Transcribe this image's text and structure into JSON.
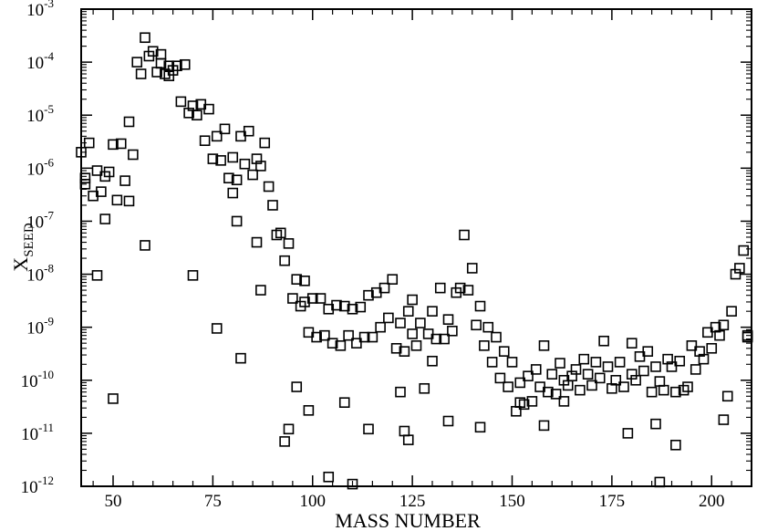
{
  "chart_data": {
    "type": "scatter",
    "title": "",
    "xlabel": "MASS NUMBER",
    "ylabel": "X",
    "ylabel_subscript": "SEED",
    "xlim": [
      42,
      210
    ],
    "ylim": [
      1e-12,
      0.001
    ],
    "yscale": "log",
    "grid": false,
    "xticks": [
      50,
      75,
      100,
      125,
      150,
      175,
      200
    ],
    "yticks": [
      {
        "base": "10",
        "exp": "-12",
        "value": 1e-12
      },
      {
        "base": "10",
        "exp": "-11",
        "value": 1e-11
      },
      {
        "base": "10",
        "exp": "-10",
        "value": 1e-10
      },
      {
        "base": "10",
        "exp": "-9",
        "value": 1e-09
      },
      {
        "base": "10",
        "exp": "-8",
        "value": 1e-08
      },
      {
        "base": "10",
        "exp": "-7",
        "value": 1e-07
      },
      {
        "base": "10",
        "exp": "-6",
        "value": 1e-06
      },
      {
        "base": "10",
        "exp": "-5",
        "value": 1e-05
      },
      {
        "base": "10",
        "exp": "-4",
        "value": 0.0001
      },
      {
        "base": "10",
        "exp": "-3",
        "value": 0.001
      }
    ],
    "marker": "open-square",
    "points": [
      [
        42,
        2e-06
      ],
      [
        43,
        6.5e-07
      ],
      [
        43,
        5e-07
      ],
      [
        44,
        3e-06
      ],
      [
        45,
        3e-07
      ],
      [
        46,
        9.5e-09
      ],
      [
        46,
        9e-07
      ],
      [
        47,
        3.6e-07
      ],
      [
        48,
        1.1e-07
      ],
      [
        48,
        7e-07
      ],
      [
        49,
        8.5e-07
      ],
      [
        50,
        4.5e-11
      ],
      [
        50,
        2.8e-06
      ],
      [
        51,
        2.5e-07
      ],
      [
        52,
        2.9e-06
      ],
      [
        53,
        5.8e-07
      ],
      [
        54,
        7.5e-06
      ],
      [
        54,
        2.4e-07
      ],
      [
        55,
        1.8e-06
      ],
      [
        56,
        0.0001
      ],
      [
        57,
        6e-05
      ],
      [
        58,
        0.00029
      ],
      [
        58,
        3.5e-08
      ],
      [
        59,
        0.00013
      ],
      [
        60,
        0.00016
      ],
      [
        61,
        6.5e-05
      ],
      [
        62,
        0.00014
      ],
      [
        62,
        9.5e-05
      ],
      [
        63,
        6e-05
      ],
      [
        64,
        8.5e-05
      ],
      [
        64,
        5.5e-05
      ],
      [
        65,
        7e-05
      ],
      [
        66,
        8.5e-05
      ],
      [
        68,
        9e-05
      ],
      [
        67,
        1.8e-05
      ],
      [
        69,
        1.1e-05
      ],
      [
        70,
        9.5e-09
      ],
      [
        70,
        1.5e-05
      ],
      [
        71,
        1e-05
      ],
      [
        72,
        1.6e-05
      ],
      [
        73,
        3.3e-06
      ],
      [
        74,
        1.3e-05
      ],
      [
        75,
        1.5e-06
      ],
      [
        76,
        9.5e-10
      ],
      [
        76,
        4e-06
      ],
      [
        77,
        1.4e-06
      ],
      [
        78,
        5.5e-06
      ],
      [
        79,
        6.5e-07
      ],
      [
        80,
        3.4e-07
      ],
      [
        80,
        1.6e-06
      ],
      [
        81,
        1e-07
      ],
      [
        81,
        6e-07
      ],
      [
        82,
        2.6e-10
      ],
      [
        82,
        4e-06
      ],
      [
        83,
        1.2e-06
      ],
      [
        84,
        5e-06
      ],
      [
        85,
        7.5e-07
      ],
      [
        86,
        4e-08
      ],
      [
        86,
        1.5e-06
      ],
      [
        87,
        1.1e-06
      ],
      [
        87,
        5e-09
      ],
      [
        88,
        3e-06
      ],
      [
        89,
        4.5e-07
      ],
      [
        90,
        2e-07
      ],
      [
        91,
        5.5e-08
      ],
      [
        92,
        6e-08
      ],
      [
        93,
        1.8e-08
      ],
      [
        93,
        7e-12
      ],
      [
        94,
        1.2e-11
      ],
      [
        94,
        3.8e-08
      ],
      [
        95,
        3.5e-09
      ],
      [
        96,
        7.5e-11
      ],
      [
        96,
        8e-09
      ],
      [
        97,
        2.5e-09
      ],
      [
        98,
        3e-09
      ],
      [
        98,
        7.5e-09
      ],
      [
        99,
        8e-10
      ],
      [
        99,
        2.7e-11
      ],
      [
        100,
        3.5e-09
      ],
      [
        101,
        6.5e-10
      ],
      [
        102,
        3.5e-09
      ],
      [
        103,
        7e-10
      ],
      [
        104,
        2.2e-09
      ],
      [
        104,
        1.5e-12
      ],
      [
        105,
        5e-10
      ],
      [
        106,
        2.6e-09
      ],
      [
        107,
        4.5e-10
      ],
      [
        108,
        2.5e-09
      ],
      [
        108,
        3.8e-11
      ],
      [
        109,
        7e-10
      ],
      [
        110,
        2.2e-09
      ],
      [
        110,
        1.1e-12
      ],
      [
        111,
        5e-10
      ],
      [
        112,
        2.4e-09
      ],
      [
        113,
        6.5e-10
      ],
      [
        114,
        4e-09
      ],
      [
        114,
        1.2e-11
      ],
      [
        115,
        6.5e-10
      ],
      [
        116,
        4.5e-09
      ],
      [
        117,
        1e-09
      ],
      [
        118,
        5.5e-09
      ],
      [
        119,
        1.5e-09
      ],
      [
        120,
        8e-09
      ],
      [
        121,
        4e-10
      ],
      [
        122,
        6e-11
      ],
      [
        122,
        1.2e-09
      ],
      [
        123,
        1.1e-11
      ],
      [
        123,
        3.5e-10
      ],
      [
        124,
        7.5e-12
      ],
      [
        124,
        2e-09
      ],
      [
        125,
        7.5e-10
      ],
      [
        125,
        3.3e-09
      ],
      [
        126,
        4.5e-10
      ],
      [
        127,
        1.2e-09
      ],
      [
        128,
        7e-11
      ],
      [
        129,
        7.5e-10
      ],
      [
        130,
        2.3e-10
      ],
      [
        130,
        2e-09
      ],
      [
        131,
        6e-10
      ],
      [
        132,
        5.5e-09
      ],
      [
        133,
        6e-10
      ],
      [
        134,
        1.7e-11
      ],
      [
        134,
        1.4e-09
      ],
      [
        135,
        8.5e-10
      ],
      [
        136,
        4.5e-09
      ],
      [
        137,
        5.5e-09
      ],
      [
        138,
        5.5e-08
      ],
      [
        139,
        5e-09
      ],
      [
        140,
        1.3e-08
      ],
      [
        141,
        1.1e-09
      ],
      [
        142,
        2.5e-09
      ],
      [
        142,
        1.3e-11
      ],
      [
        143,
        4.5e-10
      ],
      [
        144,
        1e-09
      ],
      [
        145,
        2.2e-10
      ],
      [
        146,
        6.5e-10
      ],
      [
        147,
        1.1e-10
      ],
      [
        148,
        3.5e-10
      ],
      [
        149,
        7.5e-11
      ],
      [
        150,
        2.2e-10
      ],
      [
        151,
        2.6e-11
      ],
      [
        152,
        9e-11
      ],
      [
        152,
        3.8e-11
      ],
      [
        153,
        3.5e-11
      ],
      [
        154,
        1.2e-10
      ],
      [
        155,
        4e-11
      ],
      [
        156,
        1.6e-10
      ],
      [
        157,
        7.5e-11
      ],
      [
        158,
        1.4e-11
      ],
      [
        158,
        4.5e-10
      ],
      [
        159,
        6e-11
      ],
      [
        160,
        1.3e-10
      ],
      [
        161,
        5.5e-11
      ],
      [
        162,
        2.1e-10
      ],
      [
        163,
        4e-11
      ],
      [
        163,
        1e-10
      ],
      [
        164,
        8e-11
      ],
      [
        165,
        1.2e-10
      ],
      [
        166,
        1.6e-10
      ],
      [
        167,
        6.5e-11
      ],
      [
        168,
        2.5e-10
      ],
      [
        169,
        1.3e-10
      ],
      [
        170,
        8e-11
      ],
      [
        171,
        2.2e-10
      ],
      [
        172,
        1.1e-10
      ],
      [
        173,
        5.5e-10
      ],
      [
        174,
        1.8e-10
      ],
      [
        175,
        7e-11
      ],
      [
        176,
        1e-10
      ],
      [
        177,
        2.2e-10
      ],
      [
        178,
        7.5e-11
      ],
      [
        179,
        1e-11
      ],
      [
        180,
        5e-10
      ],
      [
        180,
        1.3e-10
      ],
      [
        181,
        1e-10
      ],
      [
        182,
        2.8e-10
      ],
      [
        183,
        1.5e-10
      ],
      [
        184,
        3.5e-10
      ],
      [
        185,
        6e-11
      ],
      [
        186,
        1.5e-11
      ],
      [
        186,
        1.8e-10
      ],
      [
        187,
        1.2e-12
      ],
      [
        187,
        9.5e-11
      ],
      [
        188,
        6.5e-11
      ],
      [
        189,
        2.5e-10
      ],
      [
        190,
        1.8e-10
      ],
      [
        191,
        6e-11
      ],
      [
        191,
        6e-12
      ],
      [
        192,
        2.3e-10
      ],
      [
        193,
        6.5e-11
      ],
      [
        194,
        7.5e-11
      ],
      [
        195,
        4.5e-10
      ],
      [
        196,
        1.6e-10
      ],
      [
        197,
        3.5e-10
      ],
      [
        198,
        2.5e-10
      ],
      [
        199,
        8e-10
      ],
      [
        200,
        4e-10
      ],
      [
        201,
        1e-09
      ],
      [
        202,
        7e-10
      ],
      [
        203,
        1.1e-09
      ],
      [
        203,
        1.8e-11
      ],
      [
        204,
        5e-11
      ],
      [
        205,
        2e-09
      ],
      [
        206,
        1e-08
      ],
      [
        207,
        1.3e-08
      ],
      [
        208,
        2.8e-08
      ],
      [
        209,
        6.5e-10
      ],
      [
        209,
        7e-10
      ]
    ]
  }
}
